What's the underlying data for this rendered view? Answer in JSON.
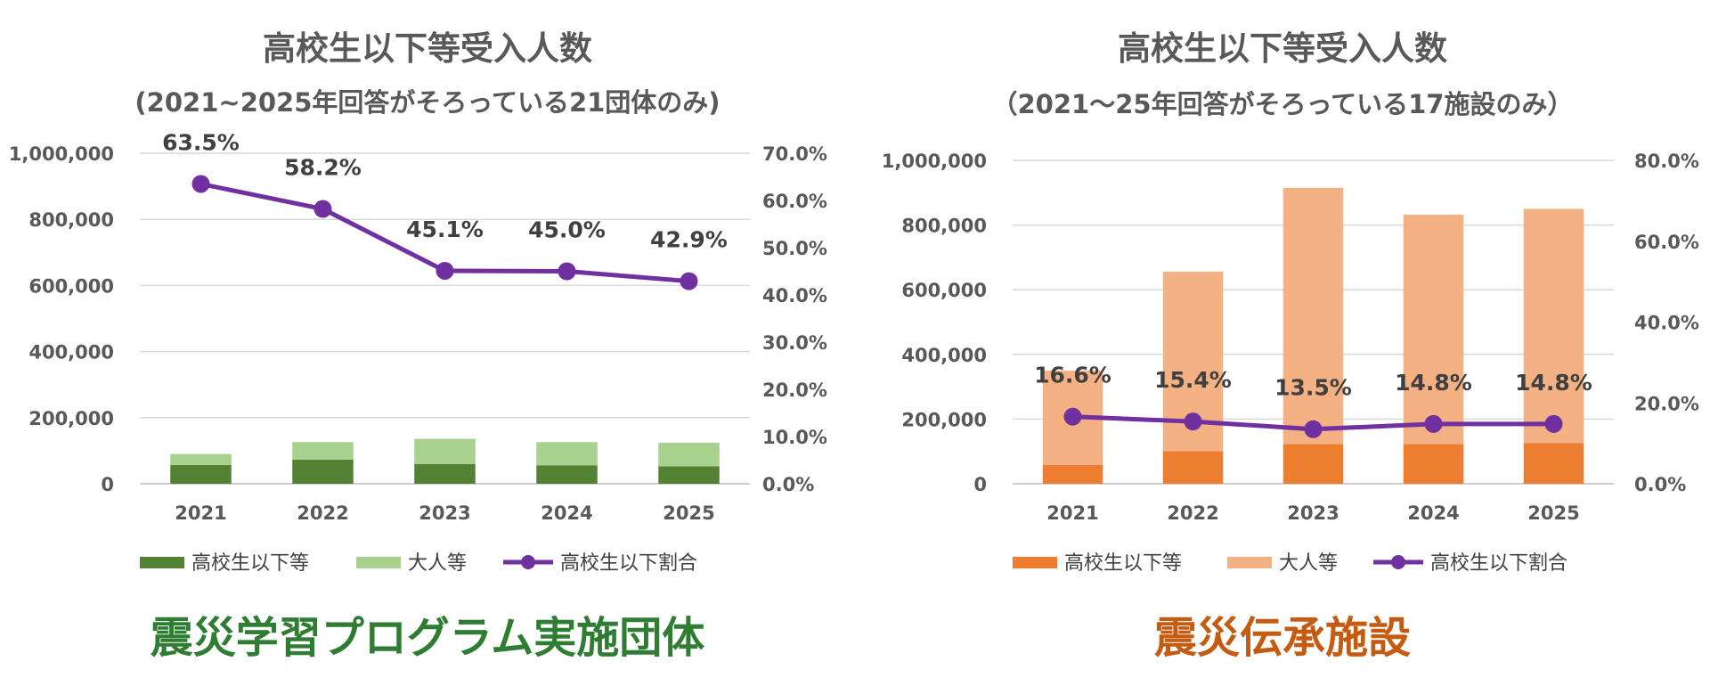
{
  "chart_data": [
    {
      "type": "bar",
      "stacked": true,
      "title": "高校生以下等受入人数",
      "subtitle": "(2021~2025年回答がそろっている21団体のみ)",
      "categories": [
        "2021",
        "2022",
        "2023",
        "2024",
        "2025"
      ],
      "series": [
        {
          "name": "高校生以下等",
          "type": "bar",
          "axis": "left",
          "color": "#548235",
          "values": [
            57000,
            73000,
            60000,
            56000,
            53000
          ]
        },
        {
          "name": "大人等",
          "type": "bar",
          "axis": "left",
          "color": "#a9d18e",
          "values": [
            33000,
            53000,
            76000,
            70000,
            71000
          ]
        },
        {
          "name": "高校生以下割合",
          "type": "line",
          "axis": "right",
          "color": "#7030a0",
          "values": [
            63.5,
            58.2,
            45.1,
            45.0,
            42.9
          ],
          "labels": [
            "63.5%",
            "58.2%",
            "45.1%",
            "45.0%",
            "42.9%"
          ]
        }
      ],
      "ylim": [
        0,
        1000000
      ],
      "y_ticks": [
        "0",
        "200,000",
        "400,000",
        "600,000",
        "800,000",
        "1,000,000"
      ],
      "y2lim": [
        0,
        70
      ],
      "y2_ticks": [
        "0.0%",
        "10.0%",
        "20.0%",
        "30.0%",
        "40.0%",
        "50.0%",
        "60.0%",
        "70.0%"
      ],
      "legend": "bottom",
      "grid": true,
      "caption": "震災学習プログラム実施団体",
      "caption_color": "#2e7d32"
    },
    {
      "type": "bar",
      "stacked": true,
      "title": "高校生以下等受入人数",
      "subtitle": "（2021～25年回答がそろっている17施設のみ）",
      "categories": [
        "2021",
        "2022",
        "2023",
        "2024",
        "2025"
      ],
      "series": [
        {
          "name": "高校生以下等",
          "type": "bar",
          "axis": "left",
          "color": "#ed7d31",
          "values": [
            58000,
            101000,
            123000,
            123000,
            126000
          ]
        },
        {
          "name": "大人等",
          "type": "bar",
          "axis": "left",
          "color": "#f4b183",
          "values": [
            292000,
            555000,
            792000,
            709000,
            724000
          ]
        },
        {
          "name": "高校生以下割合",
          "type": "line",
          "axis": "right",
          "color": "#7030a0",
          "values": [
            16.6,
            15.4,
            13.5,
            14.8,
            14.8
          ],
          "labels": [
            "16.6%",
            "15.4%",
            "13.5%",
            "14.8%",
            "14.8%"
          ]
        }
      ],
      "ylim": [
        0,
        1000000
      ],
      "y_ticks": [
        "0",
        "200,000",
        "400,000",
        "600,000",
        "800,000",
        "1,000,000"
      ],
      "y2lim": [
        0,
        80
      ],
      "y2_ticks": [
        "0.0%",
        "20.0%",
        "40.0%",
        "60.0%",
        "80.0%"
      ],
      "legend": "bottom",
      "grid": true,
      "caption": "震災伝承施設",
      "caption_color": "#c55a11"
    }
  ]
}
